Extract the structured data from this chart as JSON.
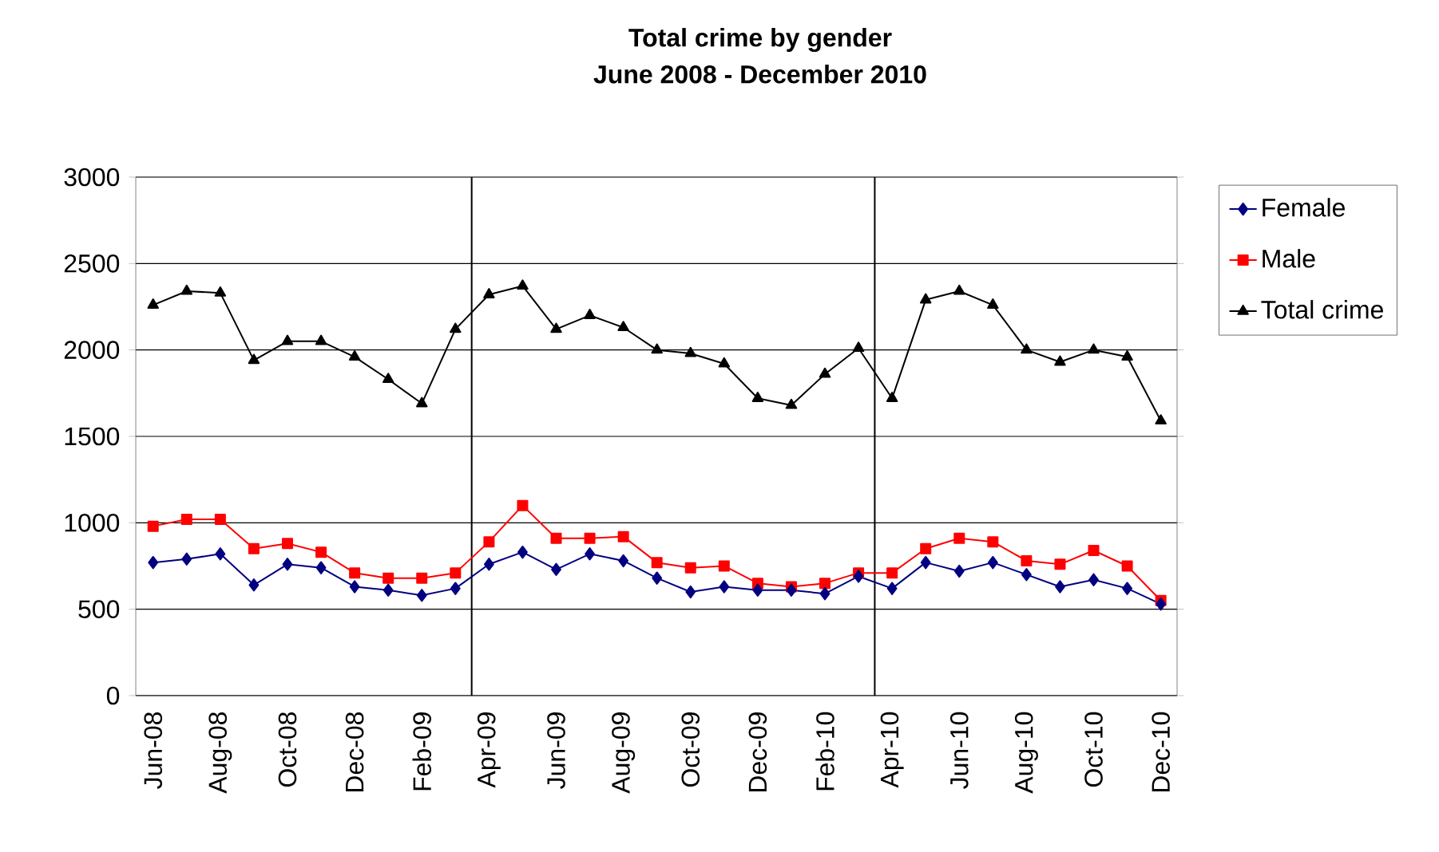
{
  "chart_data": {
    "type": "line",
    "title": "Total crime by gender",
    "subtitle": "June 2008 - December 2010",
    "x": [
      "2008-06",
      "2008-07",
      "2008-08",
      "2008-09",
      "2008-10",
      "2008-11",
      "2008-12",
      "2009-01",
      "2009-02",
      "2009-03",
      "2009-04",
      "2009-05",
      "2009-06",
      "2009-07",
      "2009-08",
      "2009-09",
      "2009-10",
      "2009-11",
      "2009-12",
      "2010-01",
      "2010-02",
      "2010-03",
      "2010-04",
      "2010-05",
      "2010-06",
      "2010-07",
      "2010-08",
      "2010-09",
      "2010-10",
      "2010-11",
      "2010-12"
    ],
    "xlim": [
      "2008-05-16",
      "2010-12-16"
    ],
    "xticks": [
      {
        "value": "2008-06",
        "label": "Jun-08"
      },
      {
        "value": "2008-08",
        "label": "Aug-08"
      },
      {
        "value": "2008-10",
        "label": "Oct-08"
      },
      {
        "value": "2008-12",
        "label": "Dec-08"
      },
      {
        "value": "2009-02",
        "label": "Feb-09"
      },
      {
        "value": "2009-04",
        "label": "Apr-09"
      },
      {
        "value": "2009-06",
        "label": "Jun-09"
      },
      {
        "value": "2009-08",
        "label": "Aug-09"
      },
      {
        "value": "2009-10",
        "label": "Oct-09"
      },
      {
        "value": "2009-12",
        "label": "Dec-09"
      },
      {
        "value": "2010-02",
        "label": "Feb-10"
      },
      {
        "value": "2010-04",
        "label": "Apr-10"
      },
      {
        "value": "2010-06",
        "label": "Jun-10"
      },
      {
        "value": "2010-08",
        "label": "Aug-10"
      },
      {
        "value": "2010-10",
        "label": "Oct-10"
      },
      {
        "value": "2010-12",
        "label": "Dec-10"
      }
    ],
    "series": [
      {
        "name": "Female",
        "color": "#000080",
        "marker": "diamond",
        "values": [
          770,
          790,
          820,
          640,
          760,
          740,
          630,
          610,
          580,
          620,
          760,
          830,
          730,
          820,
          780,
          680,
          600,
          630,
          610,
          610,
          590,
          690,
          620,
          770,
          720,
          770,
          700,
          630,
          670,
          620,
          530
        ]
      },
      {
        "name": "Male",
        "color": "#ff0000",
        "marker": "square",
        "values": [
          980,
          1020,
          1020,
          850,
          880,
          830,
          710,
          680,
          680,
          710,
          890,
          1100,
          910,
          910,
          920,
          770,
          740,
          750,
          650,
          630,
          650,
          710,
          710,
          850,
          910,
          890,
          780,
          760,
          840,
          750,
          550
        ]
      },
      {
        "name": "Total crime",
        "color": "#000000",
        "marker": "triangle",
        "values": [
          2260,
          2340,
          2330,
          1940,
          2050,
          2050,
          1960,
          1830,
          1690,
          2120,
          2320,
          2370,
          2120,
          2200,
          2130,
          2000,
          1980,
          1920,
          1720,
          1680,
          1860,
          2010,
          1720,
          2290,
          2340,
          2260,
          2000,
          1930,
          2000,
          1960,
          1590
        ]
      }
    ],
    "ylim": [
      0,
      3000
    ],
    "yticks": [
      0,
      500,
      1000,
      1500,
      2000,
      2500,
      3000
    ],
    "grid": "y",
    "legend": "right",
    "ref_lines": [
      {
        "axis": "x",
        "value": "2009-03-16",
        "color": "#000000"
      },
      {
        "axis": "x",
        "value": "2010-03-16",
        "color": "#000000"
      }
    ]
  }
}
